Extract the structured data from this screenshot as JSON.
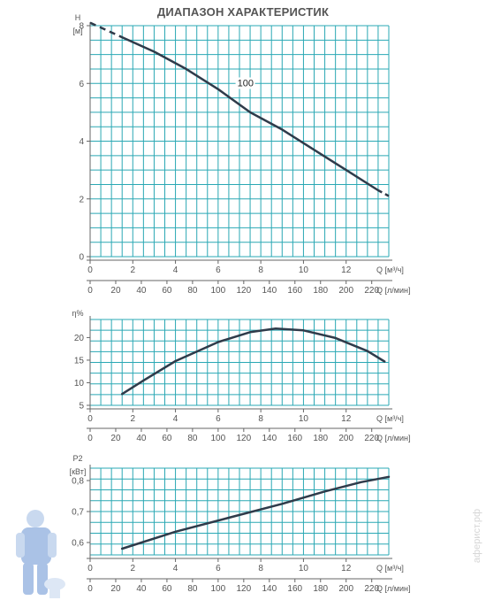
{
  "page": {
    "title": "ДИАПАЗОН ХАРАКТЕРИСТИК"
  },
  "watermark": "аферист.рф",
  "colors": {
    "grid": "#2aa8b4",
    "curve": "#2f3b4a",
    "text": "#555555",
    "axis": "#666666"
  },
  "chart_data": [
    {
      "type": "line",
      "ylabel": "H",
      "yunit": "[м]",
      "xlabel": "Q [м³/ч]",
      "x2label": "Q [л/мин]",
      "curve_label": "100",
      "xlim": [
        0,
        14
      ],
      "ylim": [
        0,
        8
      ],
      "y_ticks": [
        0,
        2,
        4,
        6,
        8
      ],
      "x_ticks": [
        0,
        2,
        4,
        6,
        8,
        10,
        12
      ],
      "x2_ticks": [
        0,
        20,
        40,
        60,
        80,
        100,
        120,
        140,
        160,
        180,
        200,
        220
      ],
      "series": [
        {
          "dashed_start": [
            [
              0,
              8.1
            ],
            [
              1.5,
              7.6
            ]
          ],
          "values": [
            [
              1.5,
              7.6
            ],
            [
              3,
              7.1
            ],
            [
              4.5,
              6.5
            ],
            [
              6,
              5.8
            ],
            [
              7.5,
              5.0
            ],
            [
              9,
              4.4
            ],
            [
              10.5,
              3.7
            ],
            [
              12,
              3.0
            ],
            [
              13.5,
              2.3
            ]
          ],
          "dashed_end": [
            [
              13.5,
              2.3
            ],
            [
              14.0,
              2.1
            ]
          ]
        }
      ]
    },
    {
      "type": "line",
      "ylabel": "η%",
      "xlabel": "Q [м³/ч]",
      "x2label": "Q [л/мин]",
      "xlim": [
        0,
        14
      ],
      "ylim": [
        5,
        24
      ],
      "y_ticks": [
        5,
        10,
        15,
        20
      ],
      "x_ticks": [
        0,
        2,
        4,
        6,
        8,
        10,
        12
      ],
      "x2_ticks": [
        0,
        20,
        40,
        60,
        80,
        100,
        120,
        140,
        160,
        180,
        200,
        220
      ],
      "series": [
        {
          "values": [
            [
              1.5,
              7.5
            ],
            [
              2.5,
              10.5
            ],
            [
              4,
              14.8
            ],
            [
              6,
              19.0
            ],
            [
              7.5,
              21.2
            ],
            [
              8.7,
              22.0
            ],
            [
              10,
              21.6
            ],
            [
              11.5,
              19.9
            ],
            [
              13,
              17.0
            ],
            [
              13.8,
              14.7
            ]
          ]
        }
      ]
    },
    {
      "type": "line",
      "ylabel": "P2",
      "yunit": "[кВт]",
      "xlabel": "Q [м³/ч]",
      "x2label": "Q [л/мин]",
      "xlim": [
        0,
        14
      ],
      "ylim": [
        0.56,
        0.84
      ],
      "y_ticks": [
        0.6,
        0.7,
        0.8
      ],
      "y_ticklabels": [
        "0,6",
        "0,7",
        "0,8"
      ],
      "x_ticks": [
        0,
        2,
        4,
        6,
        8,
        10,
        12
      ],
      "x2_ticks": [
        0,
        20,
        40,
        60,
        80,
        100,
        120,
        140,
        160,
        180,
        200,
        220
      ],
      "series": [
        {
          "values": [
            [
              1.5,
              0.58
            ],
            [
              4,
              0.635
            ],
            [
              6.5,
              0.68
            ],
            [
              9,
              0.725
            ],
            [
              11,
              0.765
            ],
            [
              12.7,
              0.795
            ],
            [
              14,
              0.812
            ]
          ]
        }
      ]
    }
  ]
}
